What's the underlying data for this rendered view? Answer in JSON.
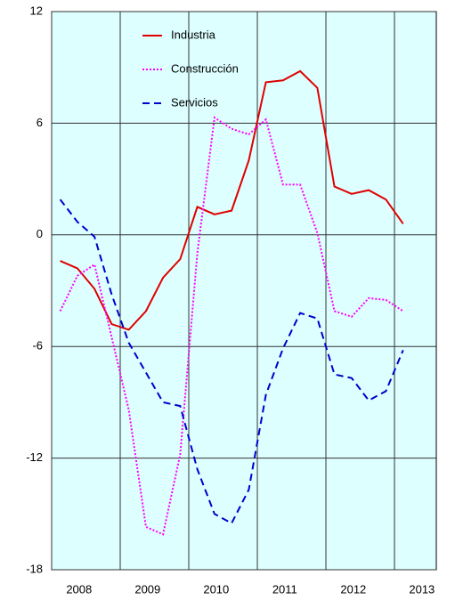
{
  "chart_data": {
    "type": "line",
    "x": [
      2008.125,
      2008.375,
      2008.625,
      2008.875,
      2009.125,
      2009.375,
      2009.625,
      2009.875,
      2010.125,
      2010.375,
      2010.625,
      2010.875,
      2011.125,
      2011.375,
      2011.625,
      2011.875,
      2012.125,
      2012.375,
      2012.625,
      2012.875,
      2013.125
    ],
    "series": [
      {
        "name": "Industria",
        "color": "#e00000",
        "dash": "solid",
        "values": [
          -1.4,
          -1.8,
          -2.9,
          -4.8,
          -5.1,
          -4.1,
          -2.3,
          -1.3,
          1.5,
          1.1,
          1.3,
          4.0,
          8.2,
          8.3,
          8.8,
          7.9,
          2.6,
          2.2,
          2.4,
          1.9,
          0.6
        ]
      },
      {
        "name": "Construcción",
        "color": "#ff00ff",
        "dash": "dotted",
        "values": [
          -4.1,
          -2.2,
          -1.6,
          -5.5,
          -9.4,
          -15.7,
          -16.1,
          -11.8,
          -1.0,
          6.3,
          5.7,
          5.4,
          6.2,
          2.7,
          2.7,
          0.1,
          -4.1,
          -4.4,
          -3.4,
          -3.5,
          -4.1
        ]
      },
      {
        "name": "Servicios",
        "color": "#0000cc",
        "dash": "dashed",
        "values": [
          1.9,
          0.7,
          -0.1,
          -3.2,
          -5.8,
          -7.4,
          -9.0,
          -9.2,
          -12.6,
          -15.0,
          -15.5,
          -13.7,
          -8.6,
          -6.1,
          -4.2,
          -4.5,
          -7.5,
          -7.7,
          -8.9,
          -8.4,
          -6.2
        ]
      }
    ],
    "xlim": [
      2008,
      2013.61
    ],
    "xticks": [
      2008,
      2009,
      2010,
      2011,
      2012,
      2013
    ],
    "ylim": [
      -18,
      12
    ],
    "yticks": [
      -18,
      -12,
      -6,
      0,
      6,
      12
    ],
    "grid": true,
    "background": "#ddffff",
    "legend": "top-left"
  }
}
